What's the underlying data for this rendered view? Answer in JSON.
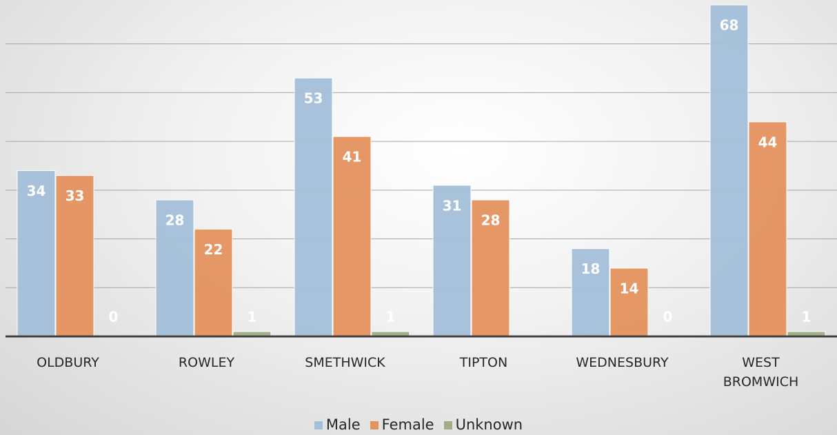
{
  "chart_data": {
    "type": "bar",
    "categories": [
      "OLDBURY",
      "ROWLEY",
      "SMETHWICK",
      "TIPTON",
      "WEDNESBURY",
      "WEST BROMWICH"
    ],
    "series": [
      {
        "name": "Male",
        "color": "#a3bfd9",
        "values": [
          34,
          28,
          53,
          31,
          18,
          68
        ]
      },
      {
        "name": "Female",
        "color": "#e4925e",
        "values": [
          33,
          22,
          41,
          28,
          14,
          44
        ]
      },
      {
        "name": "Unknown",
        "color": "#9fae86",
        "values": [
          0,
          1,
          1,
          null,
          0,
          1
        ]
      }
    ],
    "ylim": [
      0,
      69
    ],
    "yticks": [
      0,
      10,
      20,
      30,
      40,
      50,
      60
    ],
    "grid": true,
    "legend": "bottom"
  }
}
